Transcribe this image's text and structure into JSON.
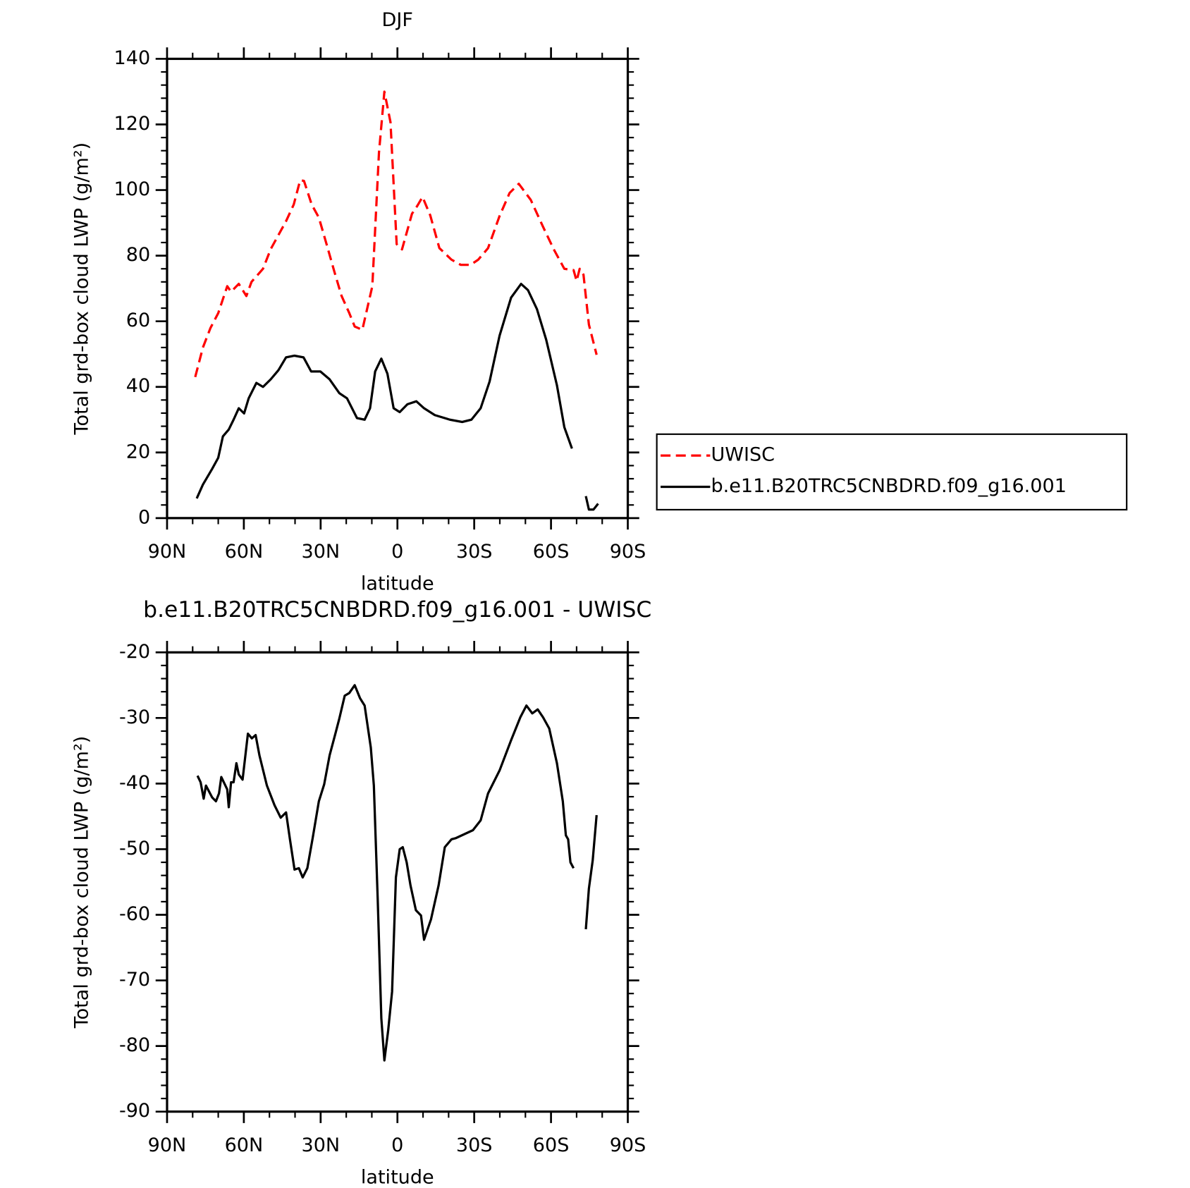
{
  "chart_data": [
    {
      "type": "line",
      "title": "DJF",
      "x_label": "latitude",
      "y_label": "Total grd-box cloud LWP (g/m²)",
      "xlim": [
        90,
        -90
      ],
      "xticks": [
        {
          "value": 90,
          "label": "90N"
        },
        {
          "value": 60,
          "label": "60N"
        },
        {
          "value": 30,
          "label": "30N"
        },
        0,
        {
          "value": -30,
          "label": "30S"
        },
        {
          "value": -60,
          "label": "60S"
        },
        {
          "value": -90,
          "label": "90S"
        }
      ],
      "ylim": [
        0,
        140
      ],
      "yticks": [
        0,
        20,
        40,
        60,
        80,
        100,
        120,
        140
      ],
      "legend": "right",
      "series": [
        {
          "name": "UWISC",
          "color": "#ff0000",
          "style": "dashed",
          "x": [
            79,
            76,
            73,
            70,
            66.5,
            65,
            62,
            59,
            57,
            52.5,
            49.5,
            43.5,
            40.5,
            38,
            36.5,
            33.5,
            30.7,
            27.7,
            24.7,
            21.8,
            18.8,
            16.7,
            13.7,
            9.8,
            7.2,
            5.1,
            2.7,
            0.3,
            -1.8,
            -5.7,
            -7.7,
            -9.8,
            -12.8,
            -16.4,
            -21.1,
            -24.7,
            -28.6,
            -31.6,
            -35.4,
            -39.9,
            -43.8,
            -47.4,
            -52.1,
            -56.9,
            -61.1,
            -65.2,
            -68.8,
            -70,
            -71.2,
            -72.7,
            -74.8,
            -77.8
          ],
          "values": [
            43,
            52,
            58,
            62.5,
            70.7,
            69,
            71.4,
            67.7,
            72,
            76,
            82,
            90.5,
            95.6,
            103,
            102.8,
            95.6,
            91.6,
            83.5,
            75.3,
            67.7,
            62.5,
            58.4,
            57.4,
            70.7,
            111.4,
            130,
            120.7,
            83.5,
            81.9,
            92.8,
            95.1,
            97.9,
            92.3,
            82.3,
            78.8,
            77.2,
            77.2,
            78.8,
            82.3,
            92.1,
            99.1,
            101.9,
            97,
            88.8,
            81.9,
            76,
            75.6,
            72.3,
            76,
            74.2,
            59,
            49.8
          ]
        },
        {
          "name": "b.e11.B20TRC5CNBDRD.f09_g16.001",
          "color": "#000000",
          "style": "solid",
          "x": [
            78.4,
            76,
            72.4,
            70,
            68.2,
            65.9,
            64,
            62,
            59.9,
            58.1,
            55.1,
            52.5,
            49.5,
            46.5,
            43.5,
            40.2,
            36.7,
            33.7,
            30.1,
            26.5,
            22.7,
            19.7,
            15.8,
            12.8,
            10.7,
            8.7,
            6.3,
            3.9,
            1.5,
            -0.9,
            -3.9,
            -7.4,
            -10.4,
            -14.6,
            -20.5,
            -25.3,
            -28.9,
            -32.5,
            -36,
            -39.9,
            -44.4,
            -48.3,
            -51,
            -54.5,
            -58.1,
            -62.3,
            -65.2,
            -68.2,
            -71,
            -73.6,
            -74.8,
            -76.6,
            -78.4
          ],
          "values": [
            6,
            10.2,
            15,
            18.4,
            24.9,
            27,
            30,
            33.5,
            31.9,
            36.5,
            41.2,
            40,
            42.3,
            45.1,
            49,
            49.5,
            49,
            44.7,
            44.7,
            42.3,
            38.1,
            36.5,
            30.5,
            30,
            33.5,
            44.7,
            48.6,
            44,
            33.5,
            32.3,
            34.7,
            35.6,
            33.5,
            31.4,
            30,
            29.3,
            30,
            33.5,
            41.6,
            55.6,
            67.2,
            71.4,
            69.5,
            63.7,
            54.4,
            40.5,
            27.7,
            21.2,
            null,
            6.7,
            2.6,
            2.6,
            4.4
          ]
        }
      ]
    },
    {
      "type": "line",
      "title": "b.e11.B20TRC5CNBDRD.f09_g16.001 - UWISC",
      "x_label": "latitude",
      "y_label": "Total grd-box cloud LWP (g/m²)",
      "xlim": [
        90,
        -90
      ],
      "xticks": [
        {
          "value": 90,
          "label": "90N"
        },
        {
          "value": 60,
          "label": "60N"
        },
        {
          "value": 30,
          "label": "30N"
        },
        0,
        {
          "value": -30,
          "label": "30S"
        },
        {
          "value": -60,
          "label": "60S"
        },
        {
          "value": -90,
          "label": "90S"
        }
      ],
      "ylim": [
        -90,
        -20
      ],
      "yticks": [
        -90,
        -80,
        -70,
        -60,
        -50,
        -40,
        -30,
        -20
      ],
      "series": [
        {
          "color": "#000000",
          "style": "solid",
          "x": [
            78.1,
            76.9,
            75.7,
            74.8,
            72.4,
            70.9,
            69.7,
            68.8,
            66.5,
            65.9,
            65,
            64,
            62.9,
            62,
            60.5,
            58.4,
            56.9,
            55.4,
            53.9,
            51,
            48,
            45.6,
            43.5,
            42,
            40.2,
            38.5,
            37,
            35.2,
            33.1,
            30.7,
            28.6,
            26.5,
            24.1,
            22.7,
            20.6,
            18.8,
            16.7,
            14.6,
            12.8,
            10.4,
            9.2,
            7.7,
            6.3,
            5.1,
            3.6,
            2.1,
            0.6,
            -0.9,
            -2.1,
            -3.6,
            -5.1,
            -7.2,
            -9.2,
            -10.4,
            -13.1,
            -16.1,
            -18.5,
            -21.1,
            -22.9,
            -29.5,
            -32.5,
            -35.4,
            -39.9,
            -44.4,
            -48,
            -50.4,
            -52.7,
            -54.8,
            -56.9,
            -59.3,
            -62.3,
            -64.6,
            -65.8,
            -66.7,
            -67.6,
            -68.8,
            -71,
            -73.6,
            -74.8,
            -76.3,
            -77.8
          ],
          "values": [
            -38.8,
            -39.8,
            -42.3,
            -40.3,
            -42.1,
            -42.7,
            -41.5,
            -39,
            -40.9,
            -43.6,
            -39.8,
            -39.8,
            -36.9,
            -38.6,
            -39.4,
            -32.4,
            -33.1,
            -32.6,
            -35.7,
            -40.3,
            -43.3,
            -45.2,
            -44.4,
            -48.5,
            -53.1,
            -52.9,
            -54.3,
            -52.9,
            -48.3,
            -42.7,
            -40.1,
            -35.7,
            -32.2,
            -30.1,
            -26.6,
            -26.2,
            -25,
            -27,
            -28.1,
            -34.5,
            -40.3,
            -57.8,
            -75.8,
            -82.2,
            -77.6,
            -71.7,
            -54.3,
            -50,
            -49.7,
            -52,
            -55.5,
            -59.3,
            -60.1,
            -63.8,
            -60.7,
            -55.5,
            -49.7,
            -48.5,
            -48.3,
            -47.1,
            -45.6,
            -41.5,
            -38,
            -33.4,
            -29.9,
            -28.1,
            -29.3,
            -28.7,
            -29.9,
            -31.6,
            -36.9,
            -42.7,
            -47.9,
            -48.5,
            -52,
            -52.9,
            null,
            -62.2,
            -56,
            -51.7,
            -44.8
          ]
        }
      ]
    }
  ]
}
